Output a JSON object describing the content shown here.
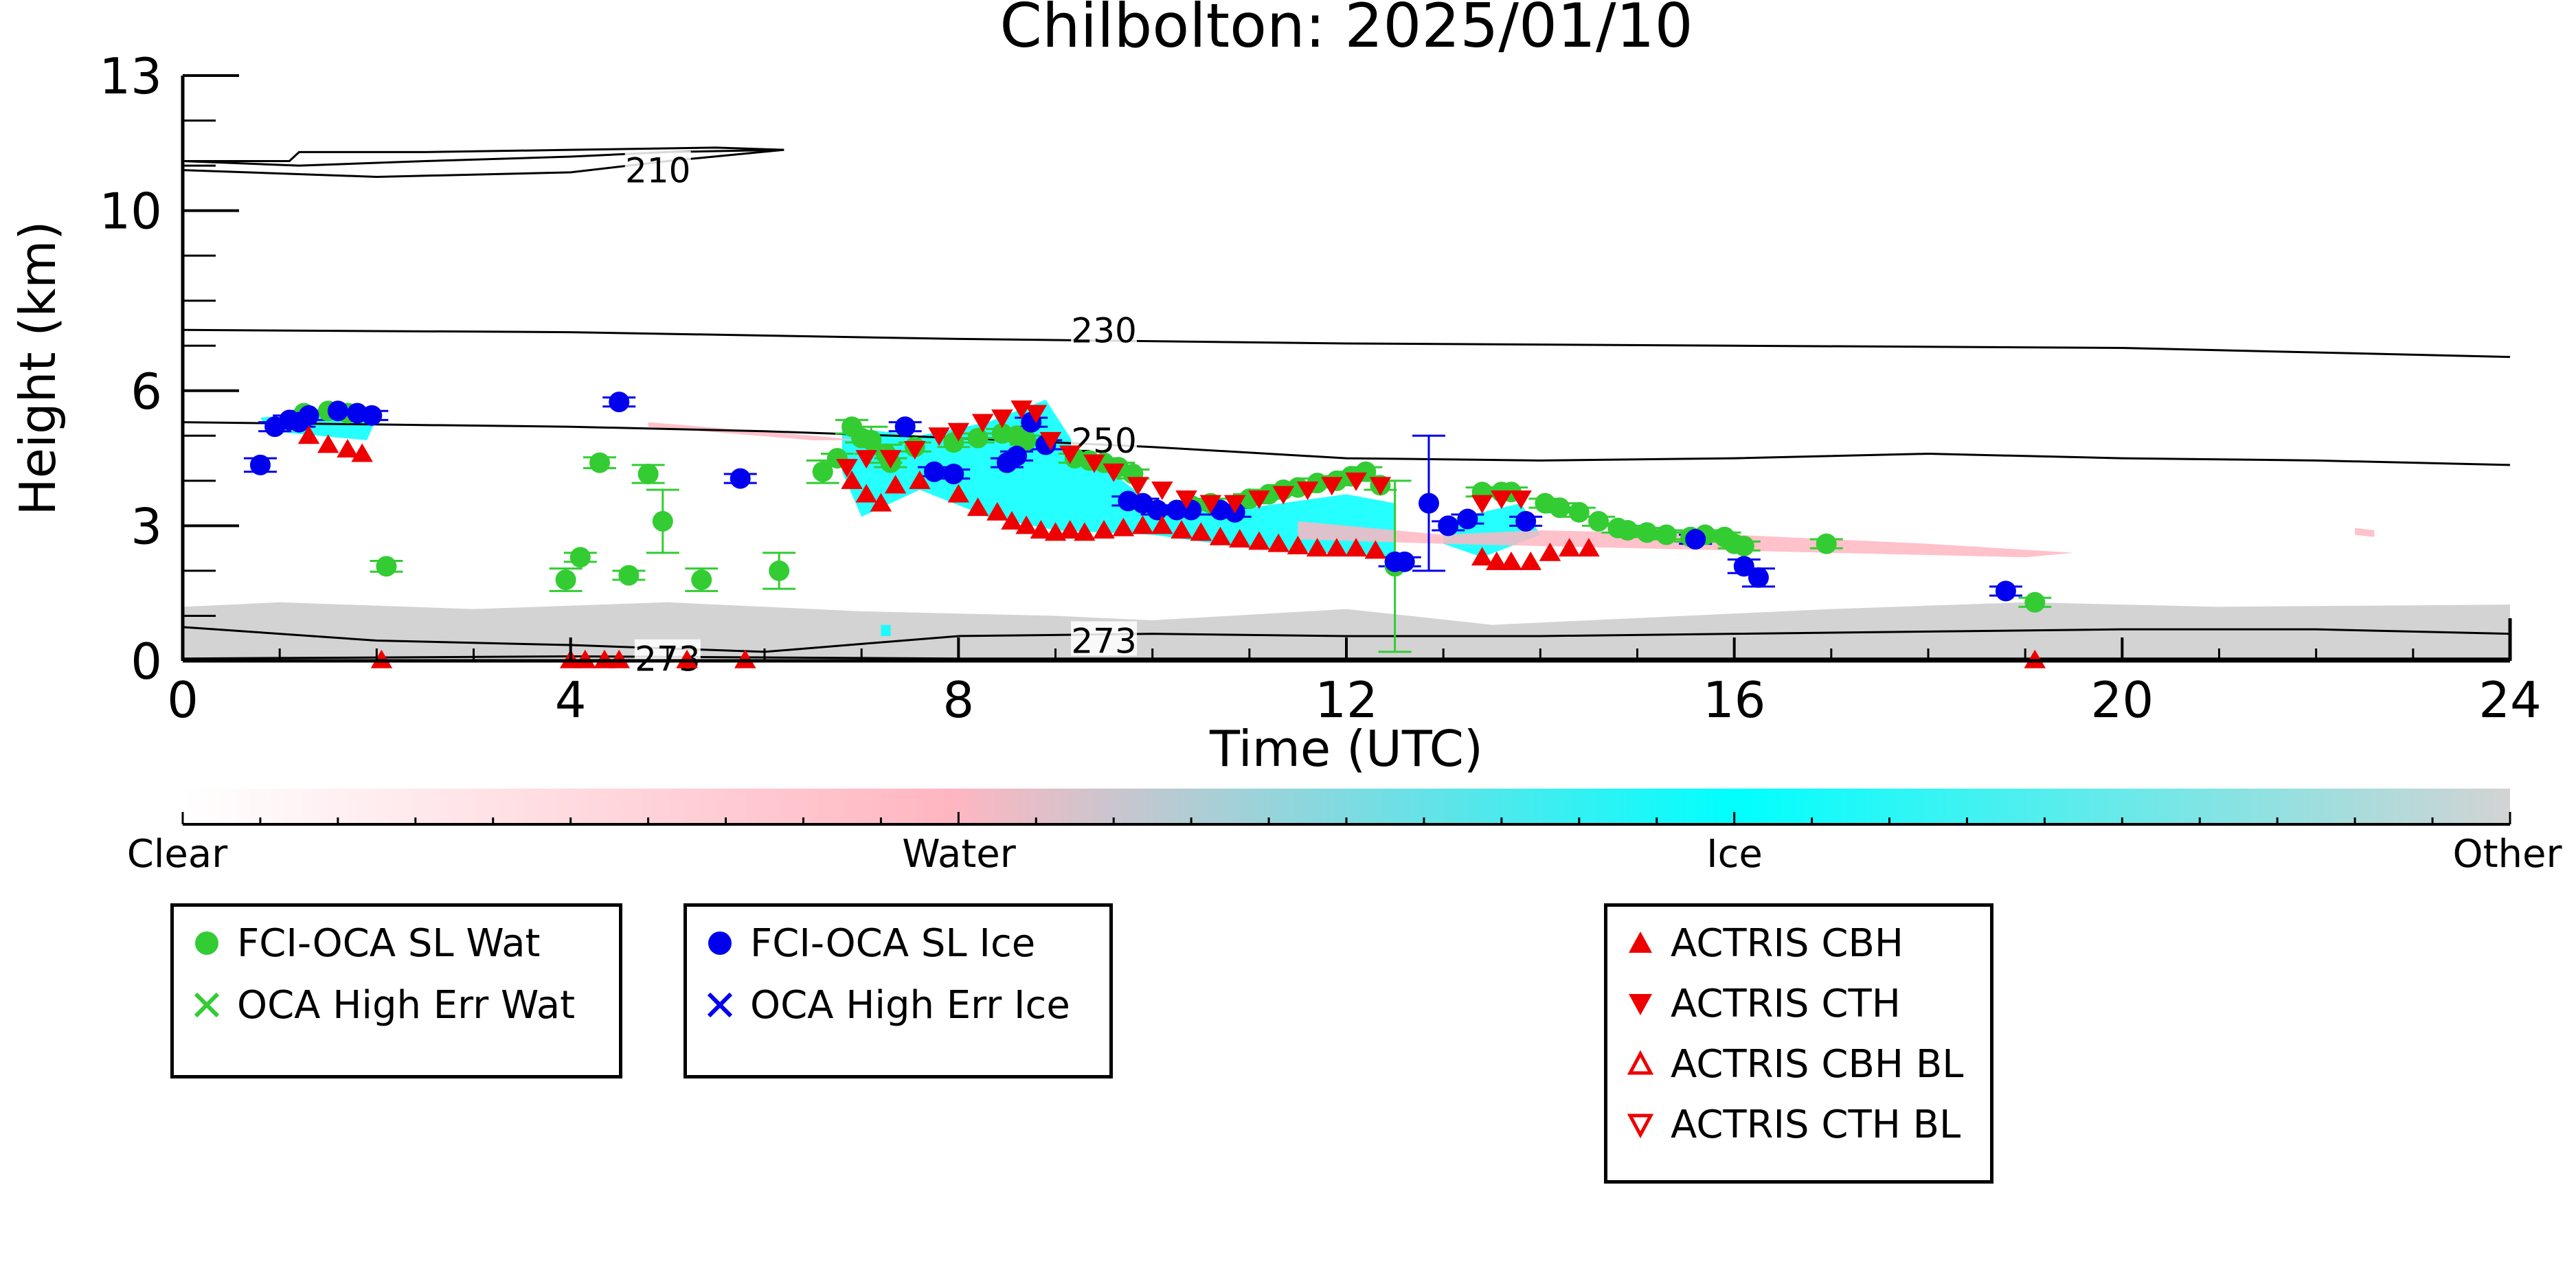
{
  "chart_data": {
    "type": "scatter",
    "title": "Chilbolton: 2025/01/10",
    "xlabel": "Time (UTC)",
    "ylabel": "Height (km)",
    "xlim": [
      0,
      24
    ],
    "ylim": [
      0,
      13
    ],
    "x_ticks": [
      0,
      4,
      8,
      12,
      16,
      20,
      24
    ],
    "y_ticks": [
      0,
      3,
      6,
      10,
      13
    ],
    "contours": [
      {
        "label": "210",
        "points": [
          [
            0,
            11.1
          ],
          [
            1.1,
            11.1
          ],
          [
            1.2,
            11.3
          ],
          [
            2.5,
            11.3
          ],
          [
            4,
            11.35
          ],
          [
            5.5,
            11.4
          ],
          [
            6.2,
            11.35
          ],
          [
            5,
            11.3
          ],
          [
            4,
            11.2
          ],
          [
            2.5,
            11.1
          ],
          [
            1.2,
            11.0
          ],
          [
            0,
            11.1
          ]
        ]
      },
      {
        "label": "210",
        "points": [
          [
            0,
            10.9
          ],
          [
            2,
            10.75
          ],
          [
            4,
            10.85
          ],
          [
            5,
            11.1
          ],
          [
            6.2,
            11.35
          ]
        ]
      },
      {
        "label": "230",
        "points": [
          [
            0,
            7.35
          ],
          [
            4,
            7.3
          ],
          [
            8,
            7.15
          ],
          [
            12,
            7.05
          ],
          [
            16,
            7.0
          ],
          [
            20,
            6.95
          ],
          [
            24,
            6.75
          ]
        ]
      },
      {
        "label": "250",
        "points": [
          [
            0,
            5.3
          ],
          [
            2,
            5.25
          ],
          [
            4,
            5.2
          ],
          [
            6,
            5.1
          ],
          [
            8,
            4.95
          ],
          [
            10,
            4.75
          ],
          [
            12,
            4.5
          ],
          [
            14,
            4.45
          ],
          [
            16,
            4.5
          ],
          [
            18,
            4.6
          ],
          [
            20,
            4.5
          ],
          [
            22,
            4.45
          ],
          [
            24,
            4.35
          ]
        ]
      },
      {
        "label": "273",
        "points": [
          [
            0,
            0.75
          ],
          [
            2,
            0.45
          ],
          [
            4,
            0.35
          ],
          [
            6,
            0.2
          ],
          [
            8,
            0.55
          ],
          [
            10,
            0.6
          ],
          [
            12,
            0.55
          ],
          [
            14,
            0.55
          ],
          [
            16,
            0.6
          ],
          [
            18,
            0.65
          ],
          [
            20,
            0.7
          ],
          [
            22,
            0.7
          ],
          [
            24,
            0.6
          ]
        ]
      },
      {
        "label": "273",
        "points": [
          [
            0,
            0.05
          ],
          [
            4,
            0.1
          ],
          [
            8,
            0.05
          ],
          [
            12,
            0.05
          ],
          [
            16,
            0.05
          ],
          [
            20,
            0.05
          ],
          [
            24,
            0.05
          ]
        ]
      }
    ],
    "contour_labels": [
      {
        "text": "210",
        "x": 4.9,
        "y": 10.9
      },
      {
        "text": "230",
        "x": 9.5,
        "y": 7.35
      },
      {
        "text": "250",
        "x": 9.5,
        "y": 4.9
      },
      {
        "text": "273",
        "x": 9.5,
        "y": 0.45
      },
      {
        "text": "273",
        "x": 5.0,
        "y": 0.05
      }
    ],
    "classification_bands": [
      {
        "class": "Other",
        "polygon": [
          [
            0,
            0
          ],
          [
            0,
            1.2
          ],
          [
            1,
            1.3
          ],
          [
            3,
            1.15
          ],
          [
            5,
            1.3
          ],
          [
            7,
            1.1
          ],
          [
            9,
            1.0
          ],
          [
            10,
            0.9
          ],
          [
            12,
            1.15
          ],
          [
            13.5,
            0.8
          ],
          [
            15,
            0.95
          ],
          [
            17,
            1.15
          ],
          [
            19,
            1.3
          ],
          [
            21,
            1.2
          ],
          [
            24,
            1.25
          ],
          [
            24,
            0
          ],
          [
            0,
            0
          ]
        ]
      },
      {
        "class": "Ice",
        "polygon": [
          [
            0.8,
            5.4
          ],
          [
            1.3,
            5.5
          ],
          [
            2,
            5.4
          ],
          [
            1.9,
            4.9
          ],
          [
            1.4,
            5.0
          ],
          [
            0.9,
            5.1
          ]
        ]
      },
      {
        "class": "Ice",
        "polygon": [
          [
            6.8,
            5.2
          ],
          [
            7.6,
            5.0
          ],
          [
            8.3,
            5.3
          ],
          [
            8.9,
            5.8
          ],
          [
            9.2,
            4.8
          ],
          [
            10,
            3.5
          ],
          [
            11,
            3.4
          ],
          [
            12,
            3.7
          ],
          [
            12.5,
            3.5
          ],
          [
            12.5,
            2.3
          ],
          [
            11,
            2.5
          ],
          [
            10,
            2.8
          ],
          [
            9,
            2.9
          ],
          [
            8.3,
            3.2
          ],
          [
            7.6,
            3.8
          ],
          [
            7,
            3.2
          ],
          [
            6.8,
            4.2
          ]
        ]
      },
      {
        "class": "Ice",
        "polygon": [
          [
            13,
            3.1
          ],
          [
            13.8,
            3.5
          ],
          [
            14,
            2.8
          ],
          [
            13.4,
            2.3
          ],
          [
            13,
            2.6
          ]
        ]
      },
      {
        "class": "Ice",
        "polygon": [
          [
            7.2,
            0.8
          ],
          [
            7.3,
            0.8
          ],
          [
            7.3,
            0.55
          ],
          [
            7.2,
            0.55
          ]
        ]
      },
      {
        "class": "Water",
        "polygon": [
          [
            4.8,
            5.2
          ],
          [
            6.5,
            4.9
          ],
          [
            7.0,
            4.9
          ],
          [
            6.5,
            5.0
          ],
          [
            4.8,
            5.3
          ]
        ]
      },
      {
        "class": "Water",
        "polygon": [
          [
            11.5,
            3.1
          ],
          [
            13,
            2.8
          ],
          [
            14,
            2.9
          ],
          [
            16,
            2.8
          ],
          [
            18,
            2.6
          ],
          [
            19.5,
            2.4
          ],
          [
            19,
            2.3
          ],
          [
            17,
            2.4
          ],
          [
            15,
            2.5
          ],
          [
            13,
            2.6
          ],
          [
            11.5,
            2.7
          ]
        ]
      },
      {
        "class": "Water",
        "polygon": [
          [
            22.4,
            2.95
          ],
          [
            22.6,
            2.9
          ],
          [
            22.6,
            2.75
          ],
          [
            22.4,
            2.8
          ]
        ]
      }
    ],
    "series": [
      {
        "name": "FCI-OCA SL Wat",
        "color": "#33cc33",
        "marker": "circle",
        "x": [
          1.25,
          1.5,
          1.7,
          2.1,
          3.95,
          4.1,
          4.3,
          4.6,
          4.8,
          4.95,
          5.35,
          6.15,
          6.6,
          6.75,
          6.9,
          7.0,
          7.1,
          7.25,
          7.3,
          7.55,
          7.95,
          8.2,
          8.45,
          8.6,
          8.7,
          9.2,
          9.35,
          9.5,
          9.65,
          9.8,
          10.4,
          10.6,
          11.0,
          11.2,
          11.35,
          11.5,
          11.7,
          11.9,
          12.05,
          12.2,
          12.35,
          12.5,
          13.4,
          13.6,
          13.7,
          14.05,
          14.2,
          14.4,
          14.6,
          14.8,
          14.9,
          15.1,
          15.3,
          15.55,
          15.7,
          15.9,
          16.0,
          16.1,
          16.95,
          19.1
        ],
        "y": [
          5.5,
          5.55,
          5.5,
          2.1,
          1.8,
          2.3,
          4.4,
          1.9,
          4.15,
          3.1,
          1.8,
          2.0,
          4.2,
          4.5,
          5.2,
          4.95,
          4.9,
          4.6,
          4.4,
          4.75,
          4.85,
          4.95,
          5.05,
          5.0,
          4.9,
          4.5,
          4.45,
          4.4,
          4.3,
          4.15,
          3.45,
          3.5,
          3.6,
          3.7,
          3.8,
          3.85,
          3.95,
          4.0,
          4.1,
          4.2,
          3.9,
          2.1,
          3.75,
          3.75,
          3.75,
          3.5,
          3.4,
          3.3,
          3.1,
          2.95,
          2.9,
          2.85,
          2.8,
          2.75,
          2.8,
          2.75,
          2.6,
          2.55,
          2.6,
          1.3
        ],
        "err": [
          0,
          0,
          0,
          0.12,
          0.25,
          0.1,
          0.12,
          0.1,
          0.2,
          0.7,
          0.25,
          0.4,
          0.25,
          0.1,
          0.15,
          0.1,
          0.3,
          0.2,
          0.1,
          0.1,
          0.1,
          0.1,
          0.1,
          0.1,
          0.1,
          0.1,
          0.1,
          0.1,
          0.1,
          0.1,
          0.1,
          0.1,
          0.1,
          0.1,
          0.1,
          0.1,
          0.1,
          0.1,
          0.1,
          0.1,
          0.1,
          1.9,
          0.1,
          0.1,
          0.1,
          0.1,
          0.1,
          0.1,
          0.1,
          0.1,
          0.1,
          0.1,
          0.1,
          0.1,
          0.1,
          0.1,
          0.1,
          0.1,
          0.1,
          0.1
        ]
      },
      {
        "name": "FCI-OCA SL Ice",
        "color": "#0000ee",
        "marker": "circle",
        "x": [
          0.8,
          0.95,
          1.1,
          1.2,
          1.3,
          1.6,
          1.8,
          1.95,
          4.5,
          5.75,
          7.45,
          7.75,
          7.95,
          8.5,
          8.6,
          8.75,
          8.9,
          9.75,
          9.9,
          10.05,
          10.25,
          10.4,
          10.7,
          10.85,
          12.5,
          12.6,
          12.85,
          13.05,
          13.25,
          13.85,
          15.6,
          16.1,
          16.25,
          18.8
        ],
        "y": [
          4.35,
          5.2,
          5.35,
          5.3,
          5.45,
          5.55,
          5.5,
          5.45,
          5.75,
          4.05,
          5.2,
          4.2,
          4.15,
          4.4,
          4.55,
          5.3,
          4.8,
          3.55,
          3.5,
          3.35,
          3.35,
          3.35,
          3.35,
          3.3,
          2.2,
          2.2,
          3.5,
          3.0,
          3.15,
          3.1,
          2.7,
          2.1,
          1.85,
          1.55
        ],
        "err": [
          0.15,
          0.1,
          0.1,
          0.1,
          0.1,
          0.1,
          0.1,
          0.1,
          0.1,
          0.1,
          0.1,
          0.1,
          0.1,
          0.1,
          0.1,
          0.1,
          0.1,
          0.1,
          0.1,
          0.1,
          0.1,
          0.1,
          0.1,
          0.1,
          0.1,
          0.1,
          1.5,
          0.1,
          0.1,
          0.1,
          0.1,
          0.15,
          0.2,
          0.1
        ]
      },
      {
        "name": "ACTRIS CBH",
        "color": "#ee0000",
        "marker": "triangle-up",
        "x": [
          1.3,
          1.5,
          1.7,
          1.85,
          2.05,
          4.0,
          4.15,
          4.35,
          4.5,
          5.2,
          5.8,
          6.9,
          7.05,
          7.2,
          7.35,
          7.6,
          8.0,
          8.2,
          8.4,
          8.55,
          8.7,
          8.85,
          9.0,
          9.15,
          9.3,
          9.5,
          9.7,
          9.9,
          10.1,
          10.3,
          10.5,
          10.7,
          10.9,
          11.1,
          11.3,
          11.5,
          11.7,
          11.9,
          12.1,
          12.3,
          13.4,
          13.55,
          13.7,
          13.9,
          14.1,
          14.3,
          14.5,
          19.1
        ],
        "y": [
          5.0,
          4.8,
          4.7,
          4.6,
          0.02,
          0.02,
          0.02,
          0.02,
          0.02,
          0.02,
          0.02,
          4.0,
          3.7,
          3.5,
          3.9,
          4.0,
          3.7,
          3.4,
          3.3,
          3.1,
          3.0,
          2.9,
          2.85,
          2.9,
          2.85,
          2.9,
          2.95,
          3.0,
          3.0,
          2.9,
          2.85,
          2.75,
          2.7,
          2.65,
          2.6,
          2.55,
          2.5,
          2.5,
          2.5,
          2.45,
          2.3,
          2.2,
          2.2,
          2.2,
          2.4,
          2.5,
          2.5,
          0.02
        ]
      },
      {
        "name": "ACTRIS CTH",
        "color": "#ee0000",
        "marker": "triangle-down",
        "x": [
          6.85,
          7.05,
          7.3,
          7.55,
          7.8,
          8.0,
          8.25,
          8.45,
          8.65,
          8.8,
          8.95,
          9.15,
          9.4,
          9.6,
          9.85,
          10.1,
          10.35,
          10.6,
          10.85,
          11.1,
          11.35,
          11.6,
          11.85,
          12.1,
          12.35,
          13.4,
          13.6,
          13.8
        ],
        "y": [
          4.3,
          4.5,
          4.5,
          4.7,
          5.0,
          5.1,
          5.3,
          5.4,
          5.6,
          5.5,
          4.9,
          4.6,
          4.4,
          4.2,
          3.9,
          3.8,
          3.6,
          3.5,
          3.5,
          3.6,
          3.7,
          3.8,
          3.9,
          4.0,
          3.9,
          3.5,
          3.6,
          3.6
        ]
      }
    ],
    "colorbar": {
      "labels": [
        "Clear",
        "Water",
        "Ice",
        "Other"
      ],
      "gradient": [
        "#ffffff",
        "#ffb6c1",
        "#00ffff",
        "#d3d3d3"
      ]
    },
    "legends": [
      {
        "entries": [
          {
            "label": "FCI-OCA SL Wat",
            "symbol": "circle",
            "color": "#33cc33"
          },
          {
            "label": "OCA High Err Wat",
            "symbol": "x",
            "color": "#33cc33"
          }
        ]
      },
      {
        "entries": [
          {
            "label": "FCI-OCA SL Ice",
            "symbol": "circle",
            "color": "#0000ee"
          },
          {
            "label": "OCA High Err Ice",
            "symbol": "x",
            "color": "#0000ee"
          }
        ]
      },
      {
        "entries": [
          {
            "label": "ACTRIS CBH",
            "symbol": "triangle-up",
            "color": "#ee0000"
          },
          {
            "label": "ACTRIS CTH",
            "symbol": "triangle-down",
            "color": "#ee0000"
          },
          {
            "label": "ACTRIS CBH BL",
            "symbol": "triangle-up-open",
            "color": "#ee0000"
          },
          {
            "label": "ACTRIS CTH BL",
            "symbol": "triangle-down-open",
            "color": "#ee0000"
          }
        ]
      }
    ]
  }
}
